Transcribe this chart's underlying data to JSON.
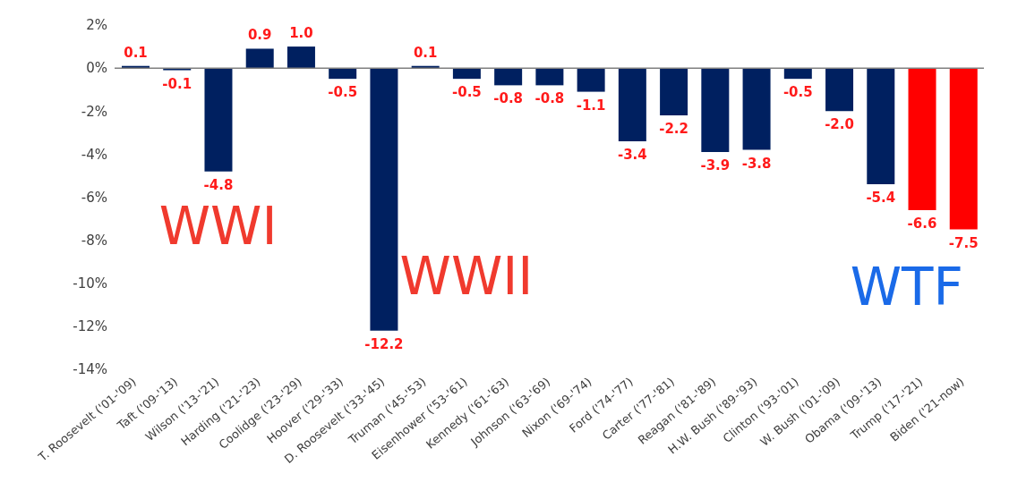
{
  "chart_data": {
    "type": "bar",
    "categories": [
      "T. Roosevelt ('01-'09)",
      "Taft ('09-'13)",
      "Wilson ('13-'21)",
      "Harding ('21-'23)",
      "Coolidge ('23-'29)",
      "Hoover ('29-'33)",
      "D. Roosevelt ('33-'45)",
      "Truman ('45-'53)",
      "Eisenhower ('53-'61)",
      "Kennedy ('61-'63)",
      "Johnson ('63-'69)",
      "Nixon ('69-'74)",
      "Ford ('74-'77)",
      "Carter ('77-'81)",
      "Reagan ('81-'89)",
      "H.W. Bush ('89-'93)",
      "Clinton ('93-'01)",
      "W. Bush ('01-'09)",
      "Obama ('09-'13)",
      "Trump ('17-'21)",
      "Biden ('21-now)"
    ],
    "values": [
      0.1,
      -0.1,
      -4.8,
      0.9,
      1.0,
      -0.5,
      -12.2,
      0.1,
      -0.5,
      -0.8,
      -0.8,
      -1.1,
      -3.4,
      -2.2,
      -3.9,
      -3.8,
      -0.5,
      -2.0,
      -5.4,
      -6.6,
      -7.5
    ],
    "value_labels": [
      "0.1",
      "-0.1",
      "-4.8",
      "0.9",
      "1.0",
      "-0.5",
      "-12.2",
      "0.1",
      "-0.5",
      "-0.8",
      "-0.8",
      "-1.1",
      "-3.4",
      "-2.2",
      "-3.9",
      "-3.8",
      "-0.5",
      "-2.0",
      "-5.4",
      "-6.6",
      "-7.5"
    ],
    "colors": [
      "#002060",
      "#002060",
      "#002060",
      "#002060",
      "#002060",
      "#002060",
      "#002060",
      "#002060",
      "#002060",
      "#002060",
      "#002060",
      "#002060",
      "#002060",
      "#002060",
      "#002060",
      "#002060",
      "#002060",
      "#002060",
      "#002060",
      "#ff0000",
      "#ff0000"
    ],
    "ylim": [
      -14,
      2
    ],
    "yticks": [
      {
        "value": -14,
        "label": "-14%"
      },
      {
        "value": -12,
        "label": "-12%"
      },
      {
        "value": -10,
        "label": "-10%"
      },
      {
        "value": -8,
        "label": "-8%"
      },
      {
        "value": -6,
        "label": "-6%"
      },
      {
        "value": -4,
        "label": "-4%"
      },
      {
        "value": -2,
        "label": "-2%"
      },
      {
        "value": 0,
        "label": "0%"
      },
      {
        "value": 2,
        "label": "2%"
      }
    ],
    "legend": false,
    "annotations": [
      "WWI",
      "WWII",
      "WTF"
    ]
  }
}
